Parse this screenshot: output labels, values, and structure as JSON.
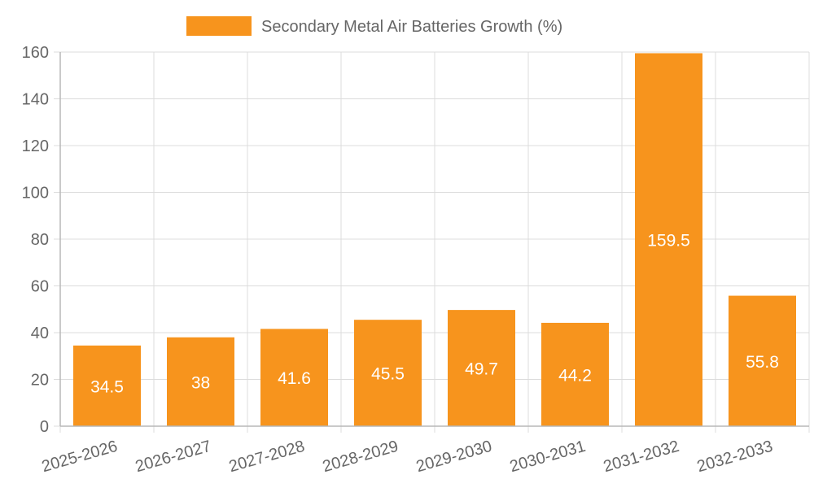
{
  "chart_data": {
    "type": "bar",
    "categories": [
      "2025-2026",
      "2026-2027",
      "2027-2028",
      "2028-2029",
      "2029-2030",
      "2030-2031",
      "2031-2032",
      "2032-2033"
    ],
    "series": [
      {
        "name": "Secondary Metal Air Batteries Growth (%)",
        "values": [
          34.5,
          38,
          41.6,
          45.5,
          49.7,
          44.2,
          159.5,
          55.8
        ],
        "labels": [
          "34.5",
          "38",
          "41.6",
          "45.5",
          "49.7",
          "44.2",
          "159.5",
          "55.8"
        ],
        "color": "#f7941d"
      }
    ],
    "ylim": [
      0,
      160
    ],
    "yticks": [
      0,
      20,
      40,
      60,
      80,
      100,
      120,
      140,
      160
    ],
    "legend_position": "top-center",
    "grid": true,
    "xlabel": "",
    "ylabel": "",
    "title": ""
  }
}
